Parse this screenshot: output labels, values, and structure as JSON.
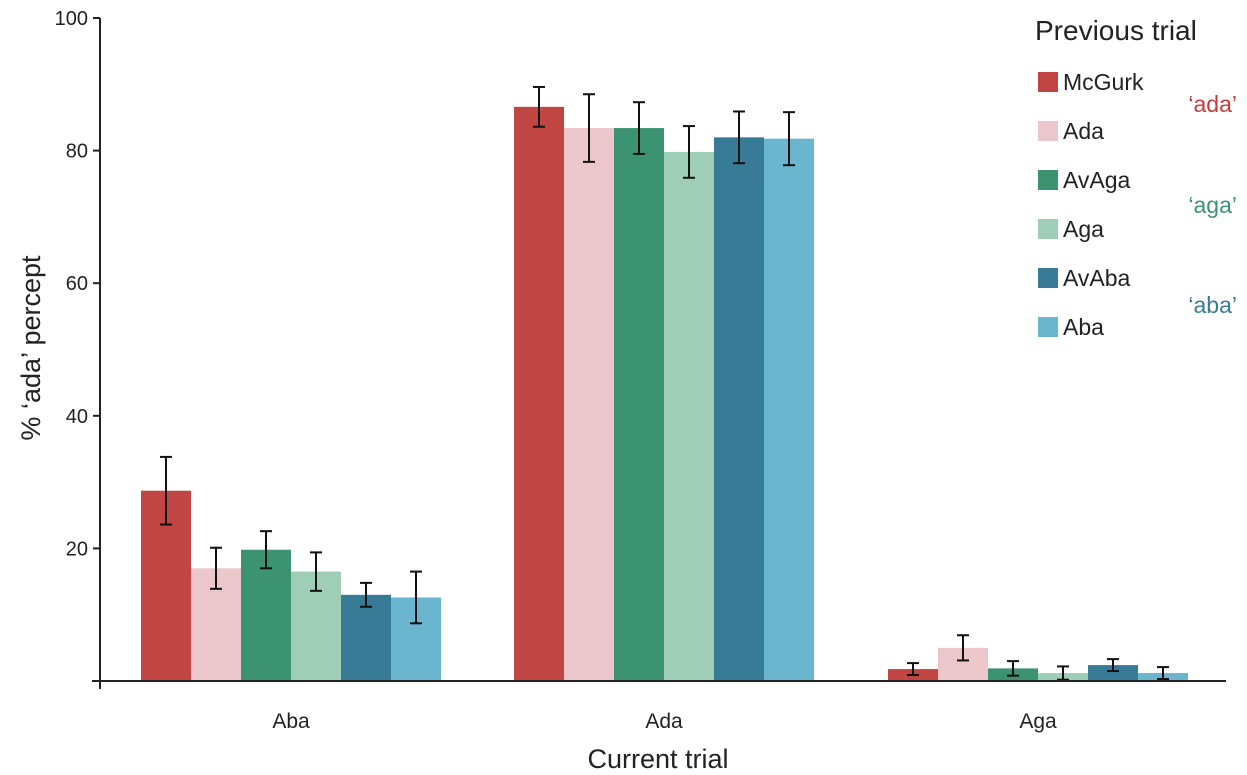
{
  "chart_data": {
    "type": "bar",
    "xlabel": "Current trial",
    "ylabel": "% ‘ada’ percept",
    "ylim": [
      0,
      100
    ],
    "yticks": [
      20,
      40,
      60,
      80,
      100
    ],
    "grid": false,
    "legend": {
      "title": "Previous trial",
      "placement": "top-right"
    },
    "categories": [
      "Aba",
      "Ada",
      "Aga"
    ],
    "series": [
      {
        "name": "McGurk",
        "color": "#c04543",
        "values": [
          28.7,
          86.6,
          1.8
        ],
        "errors": [
          5.1,
          3.0,
          0.9
        ]
      },
      {
        "name": "Ada",
        "color": "#ebc6cb",
        "values": [
          17.0,
          83.4,
          5.0
        ],
        "errors": [
          3.1,
          5.1,
          1.9
        ]
      },
      {
        "name": "AvAga",
        "color": "#3c9371",
        "values": [
          19.8,
          83.4,
          1.9
        ],
        "errors": [
          2.8,
          3.9,
          1.1
        ]
      },
      {
        "name": "Aga",
        "color": "#9ecfb6",
        "values": [
          16.5,
          79.8,
          1.2
        ],
        "errors": [
          2.9,
          3.9,
          1.0
        ]
      },
      {
        "name": "AvAba",
        "color": "#377b97",
        "values": [
          13.0,
          82.0,
          2.4
        ],
        "errors": [
          1.8,
          3.9,
          0.9
        ]
      },
      {
        "name": "Aba",
        "color": "#6ab6cf",
        "values": [
          12.6,
          81.8,
          1.2
        ],
        "errors": [
          3.9,
          4.0,
          0.9
        ]
      }
    ],
    "annotations": [
      {
        "text": "‘ada’",
        "color": "#c8393b"
      },
      {
        "text": "‘aga’",
        "color": "#3c9371"
      },
      {
        "text": "‘aba’",
        "color": "#377b97"
      }
    ]
  }
}
